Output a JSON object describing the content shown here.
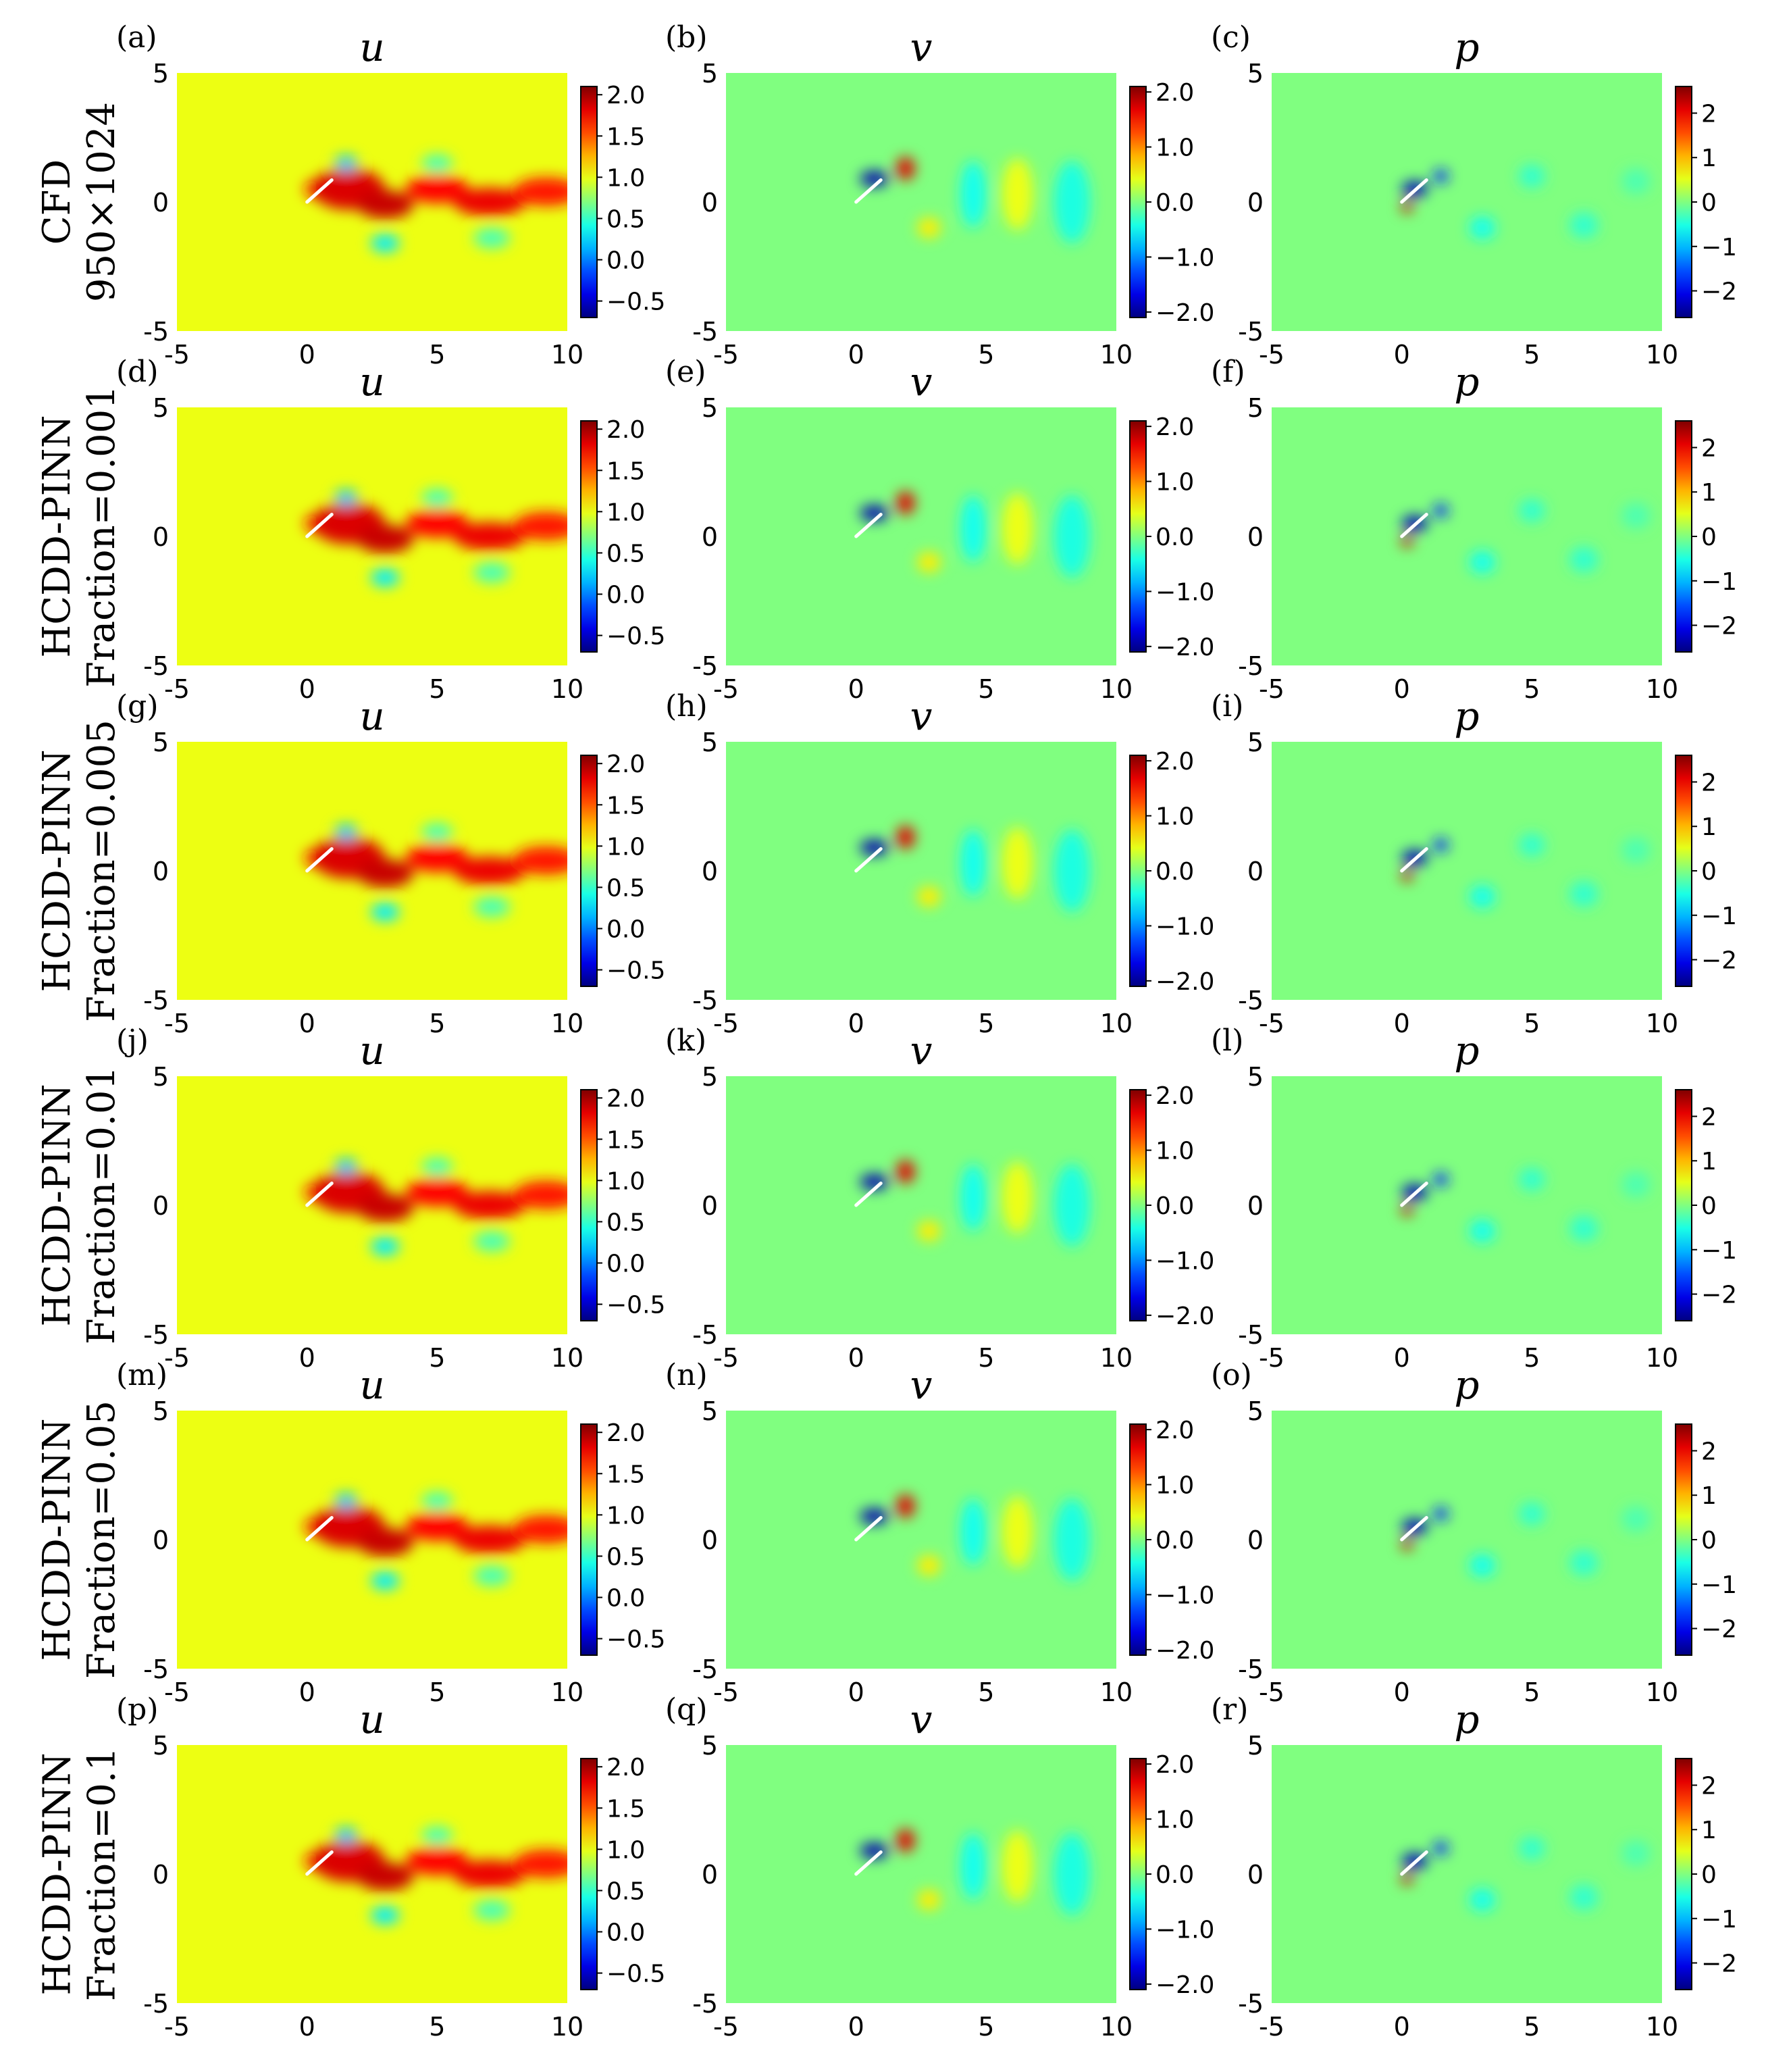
{
  "figure": {
    "columns": [
      "u",
      "v",
      "p"
    ],
    "rows": [
      {
        "label_line1": "CFD",
        "label_line2": "950×1024",
        "panels": [
          "(a)",
          "(b)",
          "(c)"
        ]
      },
      {
        "label_line1": "HCDD-PINN",
        "label_line2": "Fraction=0.001",
        "panels": [
          "(d)",
          "(e)",
          "(f)"
        ]
      },
      {
        "label_line1": "HCDD-PINN",
        "label_line2": "Fraction=0.005",
        "panels": [
          "(g)",
          "(h)",
          "(i)"
        ]
      },
      {
        "label_line1": "HCDD-PINN",
        "label_line2": "Fraction=0.01",
        "panels": [
          "(j)",
          "(k)",
          "(l)"
        ]
      },
      {
        "label_line1": "HCDD-PINN",
        "label_line2": "Fraction=0.05",
        "panels": [
          "(m)",
          "(n)",
          "(o)"
        ]
      },
      {
        "label_line1": "HCDD-PINN",
        "label_line2": "Fraction=0.1",
        "panels": [
          "(p)",
          "(q)",
          "(r)"
        ]
      }
    ]
  },
  "chart_data": {
    "type": "heatmap",
    "grid": "6x3 contour panels",
    "colormap": "jet",
    "x_ticks": [
      "-5",
      "0",
      "5",
      "10"
    ],
    "y_ticks": [
      "5",
      "0",
      "-5"
    ],
    "xlim": [
      -5,
      10
    ],
    "ylim": [
      -5,
      5
    ],
    "colorbars": {
      "u": {
        "ticks": [
          "2.0",
          "1.5",
          "1.0",
          "0.5",
          "0.0",
          "−0.5"
        ],
        "vmin": -0.7,
        "vmax": 2.1
      },
      "v": {
        "ticks": [
          "2.0",
          "1.0",
          "0.0",
          "−1.0",
          "−2.0"
        ],
        "vmin": -2.1,
        "vmax": 2.1
      },
      "p": {
        "ticks": [
          "2",
          "1",
          "0",
          "−1",
          "−2"
        ],
        "vmin": -2.6,
        "vmax": 2.6
      }
    },
    "fields": {
      "u": {
        "background": 1.0,
        "features": [
          {
            "x": 0.4,
            "y": 0.5,
            "rx": 0.5,
            "ry": 0.35,
            "value": 1.7
          },
          {
            "x": 1.6,
            "y": 0.5,
            "rx": 1.4,
            "ry": 0.8,
            "value": 1.85
          },
          {
            "x": 1.5,
            "y": 1.5,
            "rx": 0.45,
            "ry": 0.3,
            "value": 0.2
          },
          {
            "x": 3.0,
            "y": -0.1,
            "rx": 1.1,
            "ry": 0.55,
            "value": 1.9
          },
          {
            "x": 5.0,
            "y": 0.5,
            "rx": 1.2,
            "ry": 0.55,
            "value": 1.75
          },
          {
            "x": 7.0,
            "y": 0.0,
            "rx": 1.4,
            "ry": 0.55,
            "value": 1.8
          },
          {
            "x": 9.2,
            "y": 0.4,
            "rx": 1.3,
            "ry": 0.55,
            "value": 1.7
          },
          {
            "x": 3.0,
            "y": -1.6,
            "rx": 0.55,
            "ry": 0.35,
            "value": 0.3
          },
          {
            "x": 5.0,
            "y": 1.5,
            "rx": 0.6,
            "ry": 0.35,
            "value": 0.55
          },
          {
            "x": 7.1,
            "y": -1.4,
            "rx": 0.7,
            "ry": 0.4,
            "value": 0.55
          }
        ]
      },
      "v": {
        "background": 0.0,
        "features": [
          {
            "x": 0.7,
            "y": 0.9,
            "rx": 0.55,
            "ry": 0.3,
            "value": -1.9
          },
          {
            "x": 1.9,
            "y": 1.3,
            "rx": 0.35,
            "ry": 0.45,
            "value": 1.7
          },
          {
            "x": 2.8,
            "y": -1.0,
            "rx": 0.45,
            "ry": 0.4,
            "value": 0.6
          },
          {
            "x": 4.5,
            "y": 0.3,
            "rx": 0.5,
            "ry": 1.3,
            "value": -0.45
          },
          {
            "x": 6.2,
            "y": 0.3,
            "rx": 0.6,
            "ry": 1.4,
            "value": 0.45
          },
          {
            "x": 8.3,
            "y": 0.0,
            "rx": 0.7,
            "ry": 1.6,
            "value": -0.4
          }
        ]
      },
      "p": {
        "background": 0.0,
        "features": [
          {
            "x": 0.2,
            "y": -0.2,
            "rx": 0.22,
            "ry": 0.22,
            "value": 2.2
          },
          {
            "x": 0.5,
            "y": 0.5,
            "rx": 0.5,
            "ry": 0.3,
            "value": -2.3
          },
          {
            "x": 1.5,
            "y": 1.0,
            "rx": 0.28,
            "ry": 0.25,
            "value": -1.8
          },
          {
            "x": 3.1,
            "y": -1.0,
            "rx": 0.5,
            "ry": 0.45,
            "value": -0.55
          },
          {
            "x": 5.0,
            "y": 1.0,
            "rx": 0.5,
            "ry": 0.45,
            "value": -0.4
          },
          {
            "x": 7.0,
            "y": -0.9,
            "rx": 0.55,
            "ry": 0.5,
            "value": -0.4
          },
          {
            "x": 9.0,
            "y": 0.8,
            "rx": 0.55,
            "ry": 0.5,
            "value": -0.25
          }
        ]
      }
    }
  }
}
